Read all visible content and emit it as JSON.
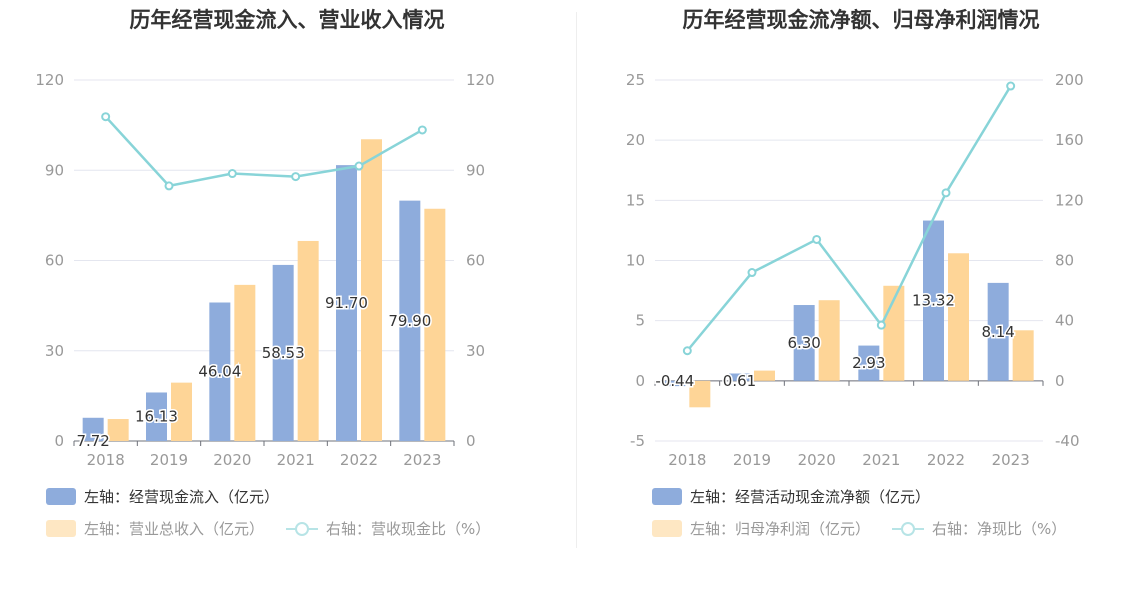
{
  "colors": {
    "flow": "#8eacdc",
    "other": "#fed597",
    "line": "#88d4d8",
    "grid": "#e4e6ef",
    "axis": "#6e7079",
    "tick": "#999999"
  },
  "chart_data": [
    {
      "type": "bar",
      "title": "历年经营现金流入、营业收入情况",
      "categories": [
        "2018",
        "2019",
        "2020",
        "2021",
        "2022",
        "2023"
      ],
      "y_left": {
        "min": 0,
        "max": 120,
        "ticks": [
          "0",
          "30",
          "60",
          "90",
          "120"
        ]
      },
      "y_right": {
        "min": 0,
        "max": 120,
        "ticks": [
          "0",
          "30",
          "60",
          "90",
          "120"
        ]
      },
      "series": [
        {
          "name": "左轴：经营现金流入（亿元）",
          "axis": "left",
          "kind": "bar",
          "values": [
            7.72,
            16.13,
            46.04,
            58.53,
            91.7,
            79.9
          ],
          "labels": [
            "7.72",
            "16.13",
            "46.04",
            "58.53",
            "91.70",
            "79.90"
          ]
        },
        {
          "name": "左轴：营业总收入（亿元）",
          "axis": "left",
          "kind": "bar",
          "values": [
            7.3,
            19.4,
            51.9,
            66.5,
            100.3,
            77.2
          ],
          "labels": null
        },
        {
          "name": "右轴：营收现金比（%）",
          "axis": "right",
          "kind": "line",
          "values": [
            107.8,
            84.8,
            88.9,
            87.9,
            91.4,
            103.4
          ],
          "labels": null
        }
      ]
    },
    {
      "type": "bar",
      "title": "历年经营现金流净额、归母净利润情况",
      "categories": [
        "2018",
        "2019",
        "2020",
        "2021",
        "2022",
        "2023"
      ],
      "y_left": {
        "min": -5,
        "max": 25,
        "ticks": [
          "-5",
          "0",
          "5",
          "10",
          "15",
          "20",
          "25"
        ]
      },
      "y_right": {
        "min": -40,
        "max": 200,
        "ticks": [
          "-40",
          "0",
          "40",
          "80",
          "120",
          "160",
          "200"
        ]
      },
      "series": [
        {
          "name": "左轴：经营活动现金流净额（亿元）",
          "axis": "left",
          "kind": "bar",
          "values": [
            -0.44,
            0.61,
            6.3,
            2.93,
            13.32,
            8.14
          ],
          "labels": [
            "-0.44",
            "0.61",
            "6.30",
            "2.93",
            "13.32",
            "8.14"
          ]
        },
        {
          "name": "左轴：归母净利润（亿元）",
          "axis": "left",
          "kind": "bar",
          "values": [
            -2.2,
            0.85,
            6.7,
            7.9,
            10.6,
            4.2
          ],
          "labels": null
        },
        {
          "name": "右轴：净现比（%）",
          "axis": "right",
          "kind": "line",
          "values": [
            20,
            72,
            94,
            37,
            125,
            196
          ],
          "labels": null
        }
      ]
    }
  ]
}
